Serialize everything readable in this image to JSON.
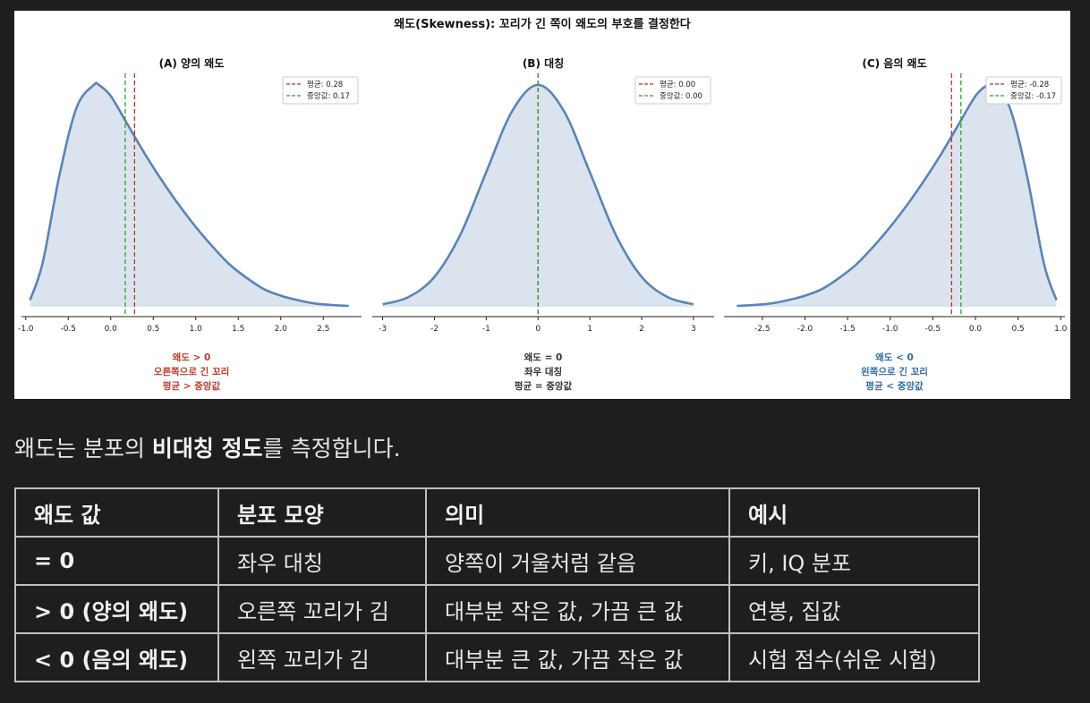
{
  "figure": {
    "suptitle": "왜도(Skewness): 꼬리가 긴 쪽이 왜도의 부호를 결정한다",
    "colors": {
      "curve": "#5a84b8",
      "fill": "#dbe4ee",
      "mean": "#d62728",
      "median": "#2ca02c",
      "positive": "#c0392b",
      "symmetric": "#333333",
      "negative": "#2e6da4"
    }
  },
  "chart_data": [
    {
      "type": "area",
      "title": "(A) 양의 왜도",
      "xlim": [
        -1.05,
        2.95
      ],
      "x_ticks": [
        "-1.0",
        "-0.5",
        "0.0",
        "0.5",
        "1.0",
        "1.5",
        "2.0",
        "2.5"
      ],
      "x_tick_values": [
        -1.0,
        -0.5,
        0.0,
        0.5,
        1.0,
        1.5,
        2.0,
        2.5
      ],
      "series": [
        {
          "x": [
            -0.95,
            -0.8,
            -0.6,
            -0.4,
            -0.2,
            -0.14,
            0.0,
            0.2,
            0.4,
            0.6,
            0.8,
            1.0,
            1.2,
            1.4,
            1.6,
            1.8,
            2.0,
            2.2,
            2.4,
            2.6,
            2.8
          ],
          "y": [
            0.03,
            0.2,
            0.6,
            0.9,
            1.0,
            1.0,
            0.95,
            0.82,
            0.69,
            0.57,
            0.46,
            0.36,
            0.27,
            0.19,
            0.13,
            0.08,
            0.05,
            0.03,
            0.015,
            0.008,
            0.004
          ]
        }
      ],
      "mean": 0.28,
      "median": 0.17,
      "legend": [
        "평균: 0.28",
        "중앙값: 0.17"
      ],
      "legend_position": "top-right",
      "caption": [
        "왜도 > 0",
        "오른쪽으로 긴 꼬리",
        "평균 > 중앙값"
      ],
      "caption_color": "positive"
    },
    {
      "type": "area",
      "title": "(B) 대칭",
      "xlim": [
        -3.2,
        3.4
      ],
      "x_ticks": [
        "-3",
        "-2",
        "-1",
        "0",
        "1",
        "2",
        "3"
      ],
      "x_tick_values": [
        -3,
        -2,
        -1,
        0,
        1,
        2,
        3
      ],
      "series": [
        {
          "x": [
            -3.0,
            -2.5,
            -2.0,
            -1.5,
            -1.0,
            -0.5,
            0.0,
            0.5,
            1.0,
            1.5,
            2.0,
            2.5,
            3.0
          ],
          "y": [
            0.011,
            0.044,
            0.135,
            0.325,
            0.607,
            0.882,
            1.0,
            0.882,
            0.607,
            0.325,
            0.135,
            0.044,
            0.011
          ]
        }
      ],
      "mean": 0.0,
      "median": 0.0,
      "legend": [
        "평균: 0.00",
        "중앙값: 0.00"
      ],
      "legend_position": "top-right",
      "caption": [
        "왜도 = 0",
        "좌우 대칭",
        "평균 = 중앙값"
      ],
      "caption_color": "symmetric"
    },
    {
      "type": "area",
      "title": "(C) 음의 왜도",
      "xlim": [
        -2.95,
        1.05
      ],
      "x_ticks": [
        "-2.5",
        "-2.0",
        "-1.5",
        "-1.0",
        "-0.5",
        "0.0",
        "0.5",
        "1.0"
      ],
      "x_tick_values": [
        -2.5,
        -2.0,
        -1.5,
        -1.0,
        -0.5,
        0.0,
        0.5,
        1.0
      ],
      "series": [
        {
          "x": [
            -2.8,
            -2.6,
            -2.4,
            -2.2,
            -2.0,
            -1.8,
            -1.6,
            -1.4,
            -1.2,
            -1.0,
            -0.8,
            -0.6,
            -0.4,
            -0.2,
            0.0,
            0.14,
            0.2,
            0.4,
            0.6,
            0.8,
            0.95
          ],
          "y": [
            0.004,
            0.008,
            0.015,
            0.03,
            0.05,
            0.08,
            0.13,
            0.19,
            0.27,
            0.36,
            0.46,
            0.57,
            0.69,
            0.82,
            0.95,
            1.0,
            1.0,
            0.9,
            0.6,
            0.2,
            0.03
          ]
        }
      ],
      "mean": -0.28,
      "median": -0.17,
      "legend": [
        "평균: -0.28",
        "중앙값: -0.17"
      ],
      "legend_position": "top-right",
      "caption": [
        "왜도 < 0",
        "왼쪽으로 긴 꼬리",
        "평균 < 중앙값"
      ],
      "caption_color": "negative"
    }
  ],
  "intro": {
    "before": "왜도는 분포의 ",
    "bold": "비대칭 정도",
    "after": "를 측정합니다."
  },
  "table": {
    "headers": [
      "왜도 값",
      "분포 모양",
      "의미",
      "예시"
    ],
    "rows": [
      [
        "= 0",
        "좌우 대칭",
        "양쪽이 거울처럼 같음",
        "키, IQ 분포"
      ],
      [
        "> 0 (양의 왜도)",
        "오른쪽 꼬리가 김",
        "대부분 작은 값, 가끔 큰 값",
        "연봉, 집값"
      ],
      [
        "< 0 (음의 왜도)",
        "왼쪽 꼬리가 김",
        "대부분 큰 값, 가끔 작은 값",
        "시험 점수(쉬운 시험)"
      ]
    ]
  }
}
